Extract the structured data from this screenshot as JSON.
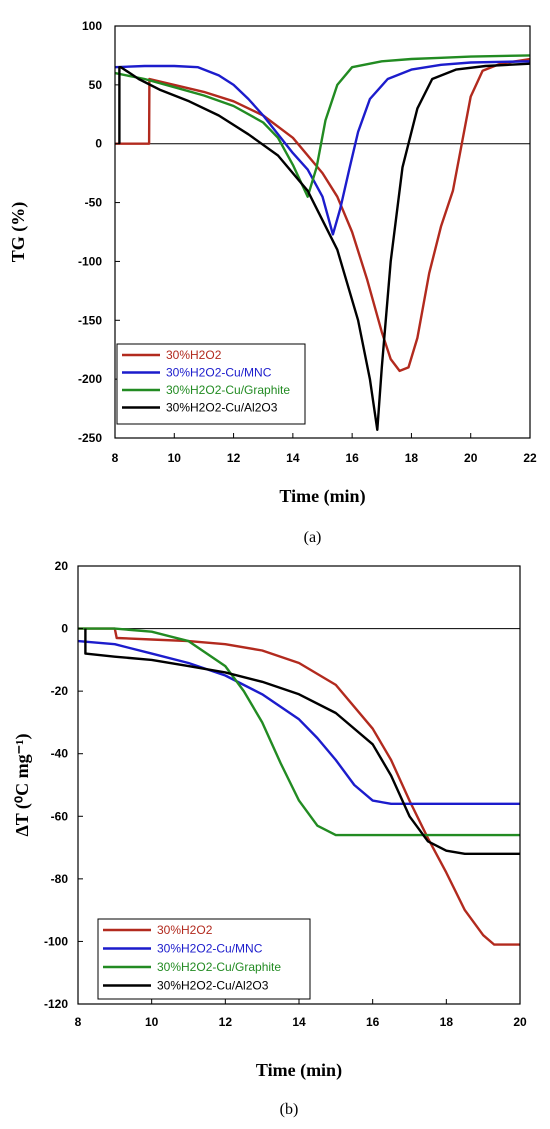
{
  "chart_data": [
    {
      "type": "line",
      "panel_label": "(a)",
      "xlabel": "Time (min)",
      "ylabel": "TG (%)",
      "xlim": [
        8,
        22
      ],
      "ylim": [
        -250,
        100
      ],
      "xticks": [
        8,
        10,
        12,
        14,
        16,
        18,
        20,
        22
      ],
      "yticks": [
        100,
        50,
        0,
        -50,
        -100,
        -150,
        -200,
        -250
      ],
      "legend_position": "bottom-left",
      "series": [
        {
          "name": "30%H2O2",
          "color": "#b22a1e",
          "points": [
            [
              8,
              0
            ],
            [
              9.15,
              0
            ],
            [
              9.16,
              55
            ],
            [
              10,
              50
            ],
            [
              11,
              44
            ],
            [
              12,
              36
            ],
            [
              13,
              24
            ],
            [
              14,
              5
            ],
            [
              15,
              -25
            ],
            [
              15.5,
              -45
            ],
            [
              16,
              -75
            ],
            [
              16.5,
              -115
            ],
            [
              17,
              -160
            ],
            [
              17.3,
              -183
            ],
            [
              17.6,
              -193
            ],
            [
              17.9,
              -190
            ],
            [
              18.2,
              -165
            ],
            [
              18.6,
              -110
            ],
            [
              19,
              -70
            ],
            [
              19.4,
              -40
            ],
            [
              19.7,
              0
            ],
            [
              20,
              40
            ],
            [
              20.4,
              62
            ],
            [
              21,
              68
            ],
            [
              22,
              72
            ]
          ]
        },
        {
          "name": "30%H2O2-Cu/MNC",
          "color": "#1c1ccc",
          "points": [
            [
              8,
              65
            ],
            [
              9,
              66
            ],
            [
              10,
              66
            ],
            [
              10.8,
              65
            ],
            [
              11.5,
              58
            ],
            [
              12,
              50
            ],
            [
              12.5,
              38
            ],
            [
              13,
              24
            ],
            [
              13.5,
              8
            ],
            [
              14,
              -8
            ],
            [
              14.5,
              -22
            ],
            [
              15,
              -45
            ],
            [
              15.35,
              -77
            ],
            [
              15.6,
              -55
            ],
            [
              15.9,
              -22
            ],
            [
              16.2,
              10
            ],
            [
              16.6,
              38
            ],
            [
              17.2,
              55
            ],
            [
              18,
              63
            ],
            [
              19,
              67
            ],
            [
              20,
              69
            ],
            [
              22,
              70
            ]
          ]
        },
        {
          "name": "30%H2O2-Cu/Graphite",
          "color": "#228b22",
          "points": [
            [
              8,
              60
            ],
            [
              9,
              55
            ],
            [
              10,
              48
            ],
            [
              11,
              41
            ],
            [
              12,
              32
            ],
            [
              13,
              18
            ],
            [
              13.5,
              5
            ],
            [
              14,
              -18
            ],
            [
              14.5,
              -45
            ],
            [
              14.8,
              -20
            ],
            [
              15.1,
              20
            ],
            [
              15.5,
              50
            ],
            [
              16,
              65
            ],
            [
              17,
              70
            ],
            [
              18,
              72
            ],
            [
              19,
              73
            ],
            [
              20,
              74
            ],
            [
              22,
              75
            ]
          ]
        },
        {
          "name": "30%H2O2-Cu/Al2O3",
          "color": "#000000",
          "points": [
            [
              8.15,
              0
            ],
            [
              8.15,
              65
            ],
            [
              8.2,
              65
            ],
            [
              8.8,
              55
            ],
            [
              9.5,
              46
            ],
            [
              10.5,
              36
            ],
            [
              11.5,
              24
            ],
            [
              12.5,
              8
            ],
            [
              13.5,
              -10
            ],
            [
              14.5,
              -40
            ],
            [
              15.5,
              -90
            ],
            [
              16.2,
              -150
            ],
            [
              16.6,
              -200
            ],
            [
              16.85,
              -243
            ],
            [
              17.0,
              -190
            ],
            [
              17.3,
              -100
            ],
            [
              17.7,
              -20
            ],
            [
              18.2,
              30
            ],
            [
              18.7,
              55
            ],
            [
              19.5,
              63
            ],
            [
              20.5,
              66
            ],
            [
              22,
              68
            ]
          ]
        }
      ]
    },
    {
      "type": "line",
      "panel_label": "(b)",
      "xlabel": "Time (min)",
      "ylabel": "ΔT (⁰C mg⁻¹)",
      "xlim": [
        8,
        20
      ],
      "ylim": [
        -120,
        20
      ],
      "xticks": [
        8,
        10,
        12,
        14,
        16,
        18,
        20
      ],
      "yticks": [
        20,
        0,
        -20,
        -40,
        -60,
        -80,
        -100,
        -120
      ],
      "legend_position": "bottom-left",
      "series": [
        {
          "name": "30%H2O2",
          "color": "#b22a1e",
          "points": [
            [
              8,
              0
            ],
            [
              9,
              0
            ],
            [
              9.05,
              -3
            ],
            [
              10,
              -3.5
            ],
            [
              11,
              -4
            ],
            [
              12,
              -5
            ],
            [
              13,
              -7
            ],
            [
              14,
              -11
            ],
            [
              15,
              -18
            ],
            [
              16,
              -32
            ],
            [
              16.5,
              -42
            ],
            [
              17,
              -55
            ],
            [
              17.5,
              -67
            ],
            [
              18,
              -78
            ],
            [
              18.5,
              -90
            ],
            [
              19,
              -98
            ],
            [
              19.3,
              -101
            ],
            [
              20,
              -101
            ]
          ]
        },
        {
          "name": "30%H2O2-Cu/MNC",
          "color": "#1c1ccc",
          "points": [
            [
              8,
              -4
            ],
            [
              9,
              -5
            ],
            [
              10,
              -8
            ],
            [
              11,
              -11
            ],
            [
              12,
              -15
            ],
            [
              13,
              -21
            ],
            [
              14,
              -29
            ],
            [
              14.5,
              -35
            ],
            [
              15,
              -42
            ],
            [
              15.5,
              -50
            ],
            [
              16,
              -55
            ],
            [
              16.5,
              -56
            ],
            [
              17,
              -56
            ],
            [
              18,
              -56
            ],
            [
              19,
              -56
            ],
            [
              20,
              -56
            ]
          ]
        },
        {
          "name": "30%H2O2-Cu/Graphite",
          "color": "#228b22",
          "points": [
            [
              8,
              0
            ],
            [
              9,
              0
            ],
            [
              10,
              -1
            ],
            [
              11,
              -4
            ],
            [
              12,
              -12
            ],
            [
              12.5,
              -20
            ],
            [
              13,
              -30
            ],
            [
              13.5,
              -43
            ],
            [
              14,
              -55
            ],
            [
              14.5,
              -63
            ],
            [
              15,
              -66
            ],
            [
              16,
              -66
            ],
            [
              17,
              -66
            ],
            [
              18,
              -66
            ],
            [
              19,
              -66
            ],
            [
              20,
              -66
            ]
          ]
        },
        {
          "name": "30%H2O2-Cu/Al2O3",
          "color": "#000000",
          "points": [
            [
              8.2,
              0
            ],
            [
              8.2,
              -8
            ],
            [
              9,
              -9
            ],
            [
              10,
              -10
            ],
            [
              11,
              -12
            ],
            [
              12,
              -14
            ],
            [
              13,
              -17
            ],
            [
              14,
              -21
            ],
            [
              15,
              -27
            ],
            [
              16,
              -37
            ],
            [
              16.5,
              -47
            ],
            [
              17,
              -60
            ],
            [
              17.5,
              -68
            ],
            [
              18,
              -71
            ],
            [
              18.5,
              -72
            ],
            [
              19,
              -72
            ],
            [
              20,
              -72
            ]
          ]
        }
      ]
    }
  ]
}
